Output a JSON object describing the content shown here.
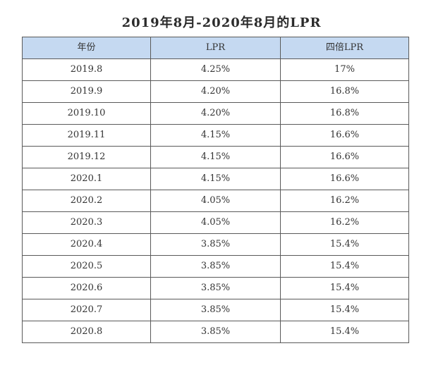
{
  "title": "2019年8月-2020年8月的LPR",
  "table": {
    "headers": [
      "年份",
      "LPR",
      "四倍LPR"
    ],
    "rows": [
      [
        "2019.8",
        "4.25%",
        "17%"
      ],
      [
        "2019.9",
        "4.20%",
        "16.8%"
      ],
      [
        "2019.10",
        "4.20%",
        "16.8%"
      ],
      [
        "2019.11",
        "4.15%",
        "16.6%"
      ],
      [
        "2019.12",
        "4.15%",
        "16.6%"
      ],
      [
        "2020.1",
        "4.15%",
        "16.6%"
      ],
      [
        "2020.2",
        "4.05%",
        "16.2%"
      ],
      [
        "2020.3",
        "4.05%",
        "16.2%"
      ],
      [
        "2020.4",
        "3.85%",
        "15.4%"
      ],
      [
        "2020.5",
        "3.85%",
        "15.4%"
      ],
      [
        "2020.6",
        "3.85%",
        "15.4%"
      ],
      [
        "2020.7",
        "3.85%",
        "15.4%"
      ],
      [
        "2020.8",
        "3.85%",
        "15.4%"
      ]
    ]
  },
  "colors": {
    "header_background": "#c5d9f1",
    "border": "#5a5a5a",
    "text": "#333333"
  }
}
